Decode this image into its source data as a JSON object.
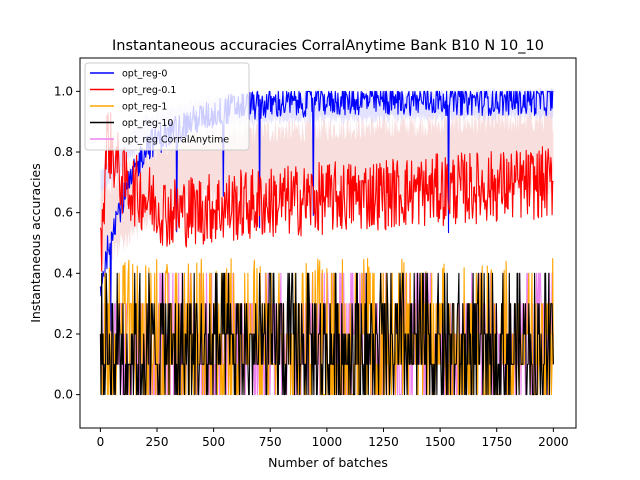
{
  "chart_data": {
    "type": "line",
    "title": "Instantaneous accuracies CorralAnytime Bank B10 N 10_10",
    "xlabel": "Number of batches",
    "ylabel": "Instantaneous accuracies",
    "xlim": [
      -90,
      2100
    ],
    "ylim": [
      -0.11,
      1.11
    ],
    "xticks": [
      0,
      250,
      500,
      750,
      1000,
      1250,
      1500,
      1750,
      2000
    ],
    "yticks": [
      0.0,
      0.2,
      0.4,
      0.6,
      0.8,
      1.0
    ],
    "xtick_labels": [
      "0",
      "250",
      "500",
      "750",
      "1000",
      "1250",
      "1500",
      "1750",
      "2000"
    ],
    "ytick_labels": [
      "0.0",
      "0.2",
      "0.4",
      "0.6",
      "0.8",
      "1.0"
    ],
    "grid": false,
    "legend_position": "top-left",
    "x_range": [
      0,
      2000
    ],
    "series": [
      {
        "name": "opt_reg-0",
        "color": "#0000ff",
        "profile": [
          [
            0,
            0.35
          ],
          [
            50,
            0.55
          ],
          [
            200,
            0.82
          ],
          [
            400,
            0.9
          ],
          [
            600,
            0.95
          ],
          [
            1000,
            0.97
          ],
          [
            2000,
            0.97
          ]
        ],
        "noise": 0.05,
        "clip_max": 1.0,
        "dip_prob": 0.01
      },
      {
        "name": "opt_reg-0.1",
        "color": "#ff0000",
        "profile": [
          [
            0,
            0.45
          ],
          [
            30,
            0.85
          ],
          [
            100,
            0.7
          ],
          [
            300,
            0.6
          ],
          [
            700,
            0.63
          ],
          [
            1200,
            0.66
          ],
          [
            2000,
            0.7
          ]
        ],
        "noise": 0.12,
        "clip_max": 1.0,
        "dip_prob": 0.0
      },
      {
        "name": "opt_reg-1",
        "color": "#ffa500",
        "profile": [
          [
            0,
            0.2
          ],
          [
            2000,
            0.15
          ]
        ],
        "noise": 0.1,
        "clip_max": 0.45,
        "dip_prob": 0.0
      },
      {
        "name": "opt_reg-10",
        "color": "#000000",
        "profile": [
          [
            0,
            0.15
          ],
          [
            2000,
            0.15
          ]
        ],
        "noise": 0.1,
        "clip_max": 0.4,
        "dip_prob": 0.0
      },
      {
        "name": "opt_reg CorralAnytime",
        "color": "#ee82ee",
        "profile": [
          [
            0,
            0.5
          ],
          [
            200,
            0.7
          ],
          [
            400,
            0.78
          ],
          [
            800,
            0.8
          ],
          [
            2000,
            0.82
          ]
        ],
        "noise": 0.06,
        "clip_max": 1.0,
        "dip_prob": 0.0
      }
    ],
    "shading": [
      {
        "color": "#f4c2c2",
        "profile": [
          [
            0,
            0.55
          ],
          [
            200,
            0.68
          ],
          [
            400,
            0.75
          ],
          [
            2000,
            0.8
          ]
        ],
        "band": 0.22
      },
      {
        "color": "#ccccff",
        "profile": [
          [
            0,
            0.7
          ],
          [
            200,
            0.88
          ],
          [
            500,
            0.94
          ],
          [
            2000,
            0.96
          ]
        ],
        "band": 0.08
      }
    ]
  }
}
